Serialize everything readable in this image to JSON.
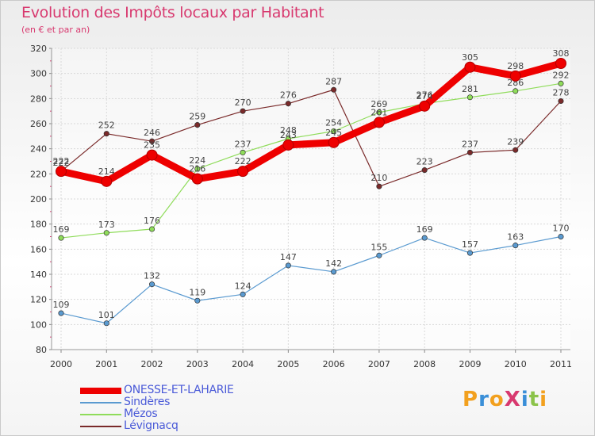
{
  "header": {
    "title": "Evolution des Impôts locaux par Habitant",
    "subtitle": "(en € et par an)"
  },
  "logo": {
    "text": "ProXiti",
    "letters": [
      {
        "ch": "P",
        "color": "#f2a01e"
      },
      {
        "ch": "r",
        "color": "#3a8fd8"
      },
      {
        "ch": "o",
        "color": "#f2a01e"
      },
      {
        "ch": "X",
        "color": "#d8396f"
      },
      {
        "ch": "i",
        "color": "#3a8fd8"
      },
      {
        "ch": "t",
        "color": "#8bc34a"
      },
      {
        "ch": "i",
        "color": "#f2a01e"
      }
    ]
  },
  "chart_data": {
    "type": "line",
    "title": "Evolution des Impôts locaux par Habitant",
    "subtitle": "(en € et par an)",
    "xlabel": "",
    "ylabel": "",
    "x": [
      "2000",
      "2001",
      "2002",
      "2003",
      "2004",
      "2005",
      "2006",
      "2007",
      "2008",
      "2009",
      "2010",
      "2011"
    ],
    "ylim": [
      80,
      320
    ],
    "yticks": [
      "80",
      "100",
      "120",
      "140",
      "160",
      "180",
      "200",
      "220",
      "240",
      "260",
      "280",
      "300",
      "320"
    ],
    "grid": true,
    "legend_position": "bottom-left",
    "series": [
      {
        "name": "Lévignacq",
        "color": "#7a2a2a",
        "values": [
          222,
          252,
          246,
          259,
          270,
          276,
          287,
          210,
          223,
          237,
          239,
          278
        ],
        "labels": [
          "222",
          "252",
          "246",
          "259",
          "270",
          "276",
          "287",
          "210",
          "223",
          "237",
          "239",
          "278"
        ]
      },
      {
        "name": "Mézos",
        "color": "#8fdc5a",
        "values": [
          169,
          173,
          176,
          224,
          237,
          248,
          254,
          269,
          276,
          281,
          286,
          292
        ],
        "labels": [
          "169",
          "173",
          "176",
          "224",
          "237",
          "248",
          "254",
          "269",
          "276",
          "281",
          "286",
          "292"
        ]
      },
      {
        "name": "Sindères",
        "color": "#5a9ad0",
        "values": [
          109,
          101,
          132,
          119,
          124,
          147,
          142,
          155,
          169,
          157,
          163,
          170
        ],
        "labels": [
          "109",
          "101",
          "132",
          "119",
          "124",
          "147",
          "142",
          "155",
          "169",
          "157",
          "163",
          "170"
        ]
      },
      {
        "name": "ONESSE-ET-LAHARIE",
        "color": "#ee0000",
        "values": [
          222,
          214,
          235,
          216,
          222,
          243,
          245,
          261,
          274,
          305,
          298,
          308
        ],
        "labels": [
          "222",
          "214",
          "235",
          "216",
          "222",
          "243",
          "245",
          "261",
          "274",
          "305",
          "298",
          "308"
        ]
      }
    ],
    "legend": [
      {
        "name": "ONESSE-ET-LAHARIE",
        "color": "#ee0000",
        "thick": true
      },
      {
        "name": "Sindères",
        "color": "#5a9ad0",
        "thick": false
      },
      {
        "name": "Mézos",
        "color": "#8fdc5a",
        "thick": false
      },
      {
        "name": "Lévignacq",
        "color": "#7a2a2a",
        "thick": false
      }
    ]
  }
}
